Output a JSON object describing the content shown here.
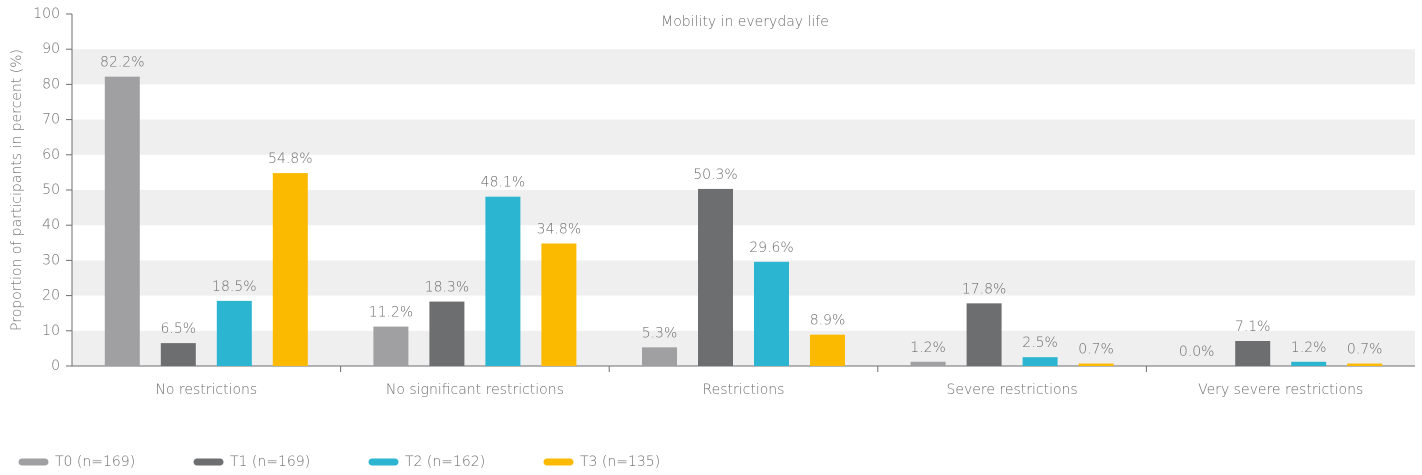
{
  "chart_data": {
    "type": "bar",
    "title": "Mobility in everyday life",
    "y_label": "Proportion of participants in percent (%)",
    "categories": [
      "No restrictions",
      "No significant restrictions",
      "Restrictions",
      "Severe restrictions",
      "Very severe restrictions"
    ],
    "series": [
      {
        "name": "T0 (n=169)",
        "color": "#a0a0a2",
        "values": [
          82.2,
          11.2,
          5.3,
          1.2,
          0.0
        ],
        "value_labels": [
          "82.2%",
          "11.2%",
          "5.3%",
          "1.2%",
          "0.0%"
        ]
      },
      {
        "name": "T1 (n=169)",
        "color": "#6d6e70",
        "values": [
          6.5,
          18.3,
          50.3,
          17.8,
          7.1
        ],
        "value_labels": [
          "6.5%",
          "18.3%",
          "50.3%",
          "17.8%",
          "7.1%"
        ]
      },
      {
        "name": "T2 (n=162)",
        "color": "#2bb5d1",
        "values": [
          18.5,
          48.1,
          29.6,
          2.5,
          1.2
        ],
        "value_labels": [
          "18.5%",
          "48.1%",
          "29.6%",
          "2.5%",
          "1.2%"
        ]
      },
      {
        "name": "T3 (n=135)",
        "color": "#fbb900",
        "values": [
          54.8,
          34.8,
          8.9,
          0.7,
          0.7
        ],
        "value_labels": [
          "54.8%",
          "34.8%",
          "8.9%",
          "0.7%",
          "0.7%"
        ]
      }
    ],
    "ylim": [
      0,
      100
    ],
    "yticks": [
      0,
      10,
      20,
      30,
      40,
      50,
      60,
      70,
      80,
      90,
      100
    ],
    "grid": "bands",
    "legend": "bottom"
  }
}
